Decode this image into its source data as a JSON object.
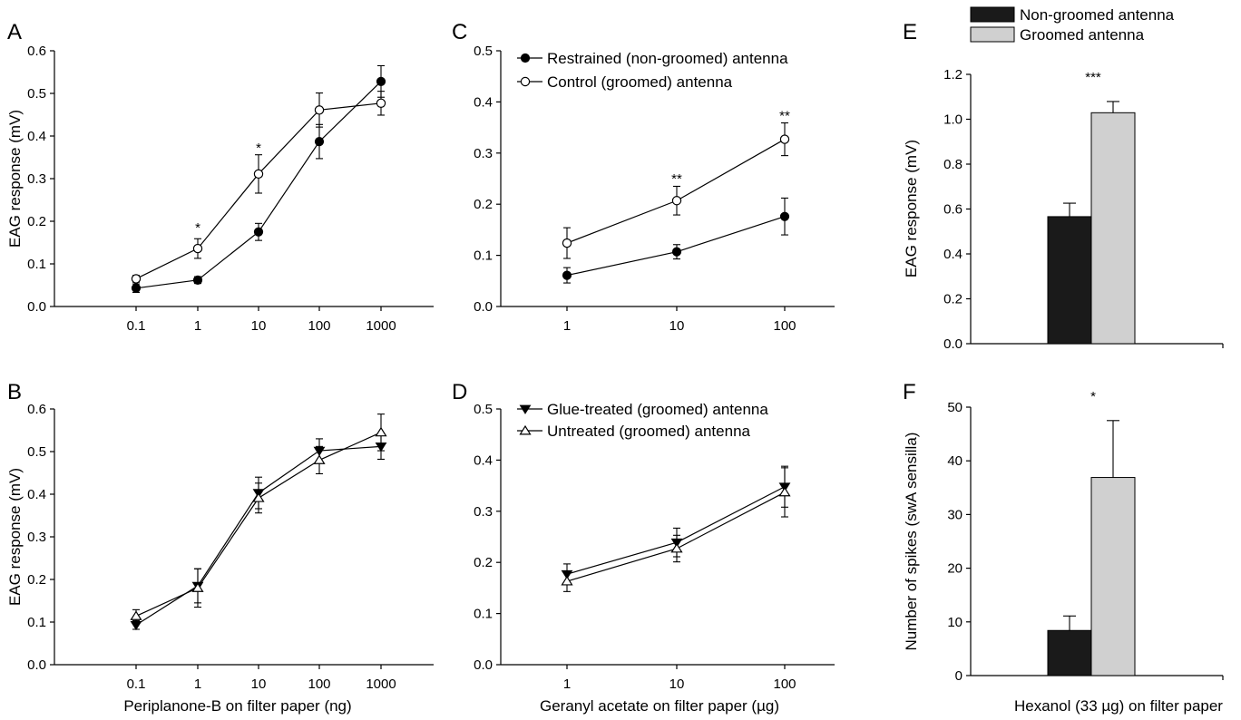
{
  "figure": {
    "x_titles": {
      "periplanone": "Periplanone-B on filter paper (ng)",
      "geranyl": "Geranyl acetate on filter paper (µg)",
      "hexanol": "Hexanol (33 µg) on filter paper"
    }
  },
  "chart_data": [
    {
      "panel": "A",
      "type": "line",
      "x_scale": "log",
      "categories": [
        "0.1",
        "1",
        "10",
        "100",
        "1000"
      ],
      "ylabel": "EAG response (mV)",
      "ylim": [
        0,
        0.6
      ],
      "yticks": [
        "0.0",
        "0.1",
        "0.2",
        "0.3",
        "0.4",
        "0.5",
        "0.6"
      ],
      "series": [
        {
          "marker": "filled-circle",
          "values": [
            0.043,
            0.062,
            0.175,
            0.387,
            0.528
          ],
          "errors": [
            0.01,
            0.008,
            0.02,
            0.04,
            0.037
          ]
        },
        {
          "marker": "open-circle",
          "values": [
            0.065,
            0.136,
            0.311,
            0.461,
            0.477
          ],
          "errors": [
            0.008,
            0.023,
            0.045,
            0.04,
            0.028
          ]
        }
      ],
      "annotations": [
        {
          "category": "1",
          "text": "*",
          "y": 0.185
        },
        {
          "category": "10",
          "text": "*",
          "y": 0.372
        }
      ]
    },
    {
      "panel": "B",
      "type": "line",
      "x_scale": "log",
      "categories": [
        "0.1",
        "1",
        "10",
        "100",
        "1000"
      ],
      "ylabel": "EAG response (mV)",
      "ylim": [
        0,
        0.6
      ],
      "yticks": [
        "0.0",
        "0.1",
        "0.2",
        "0.3",
        "0.4",
        "0.5",
        "0.6"
      ],
      "series": [
        {
          "marker": "filled-triangle-down",
          "values": [
            0.093,
            0.185,
            0.403,
            0.502,
            0.512
          ],
          "errors": [
            0.01,
            0.04,
            0.037,
            0.028,
            0.03
          ]
        },
        {
          "marker": "open-triangle-up",
          "values": [
            0.114,
            0.18,
            0.391,
            0.48,
            0.545
          ],
          "errors": [
            0.015,
            0.045,
            0.035,
            0.032,
            0.043
          ]
        }
      ],
      "legend": [
        "Glue-treated (groomed) antenna",
        "Untreated (groomed) antenna"
      ]
    },
    {
      "panel": "C",
      "type": "line",
      "x_scale": "log",
      "categories": [
        "1",
        "10",
        "100"
      ],
      "ylim": [
        0,
        0.5
      ],
      "yticks": [
        "0.0",
        "0.1",
        "0.2",
        "0.3",
        "0.4",
        "0.5"
      ],
      "series": [
        {
          "marker": "filled-circle",
          "values": [
            0.061,
            0.107,
            0.176
          ],
          "errors": [
            0.015,
            0.014,
            0.036
          ]
        },
        {
          "marker": "open-circle",
          "values": [
            0.124,
            0.207,
            0.327
          ],
          "errors": [
            0.03,
            0.028,
            0.032
          ]
        }
      ],
      "legend": [
        "Restrained (non-groomed) antenna",
        "Control (groomed) antenna"
      ],
      "annotations": [
        {
          "category": "10",
          "text": "**",
          "y": 0.25
        },
        {
          "category": "100",
          "text": "**",
          "y": 0.373
        }
      ]
    },
    {
      "panel": "D",
      "type": "line",
      "x_scale": "log",
      "categories": [
        "1",
        "10",
        "100"
      ],
      "ylim": [
        0,
        0.5
      ],
      "yticks": [
        "0.0",
        "0.1",
        "0.2",
        "0.3",
        "0.4",
        "0.5"
      ],
      "series": [
        {
          "marker": "filled-triangle-down",
          "values": [
            0.177,
            0.239,
            0.348
          ],
          "errors": [
            0.02,
            0.028,
            0.04
          ]
        },
        {
          "marker": "open-triangle-up",
          "values": [
            0.163,
            0.227,
            0.337
          ],
          "errors": [
            0.02,
            0.026,
            0.048
          ]
        }
      ]
    },
    {
      "panel": "E",
      "type": "bar",
      "categories": [
        "Non-groomed antenna",
        "Groomed antenna"
      ],
      "values": [
        0.566,
        1.029
      ],
      "errors": [
        0.06,
        0.05
      ],
      "colors": [
        "#1a1a1a",
        "#d0d0d0"
      ],
      "ylabel": "EAG response (mV)",
      "ylim": [
        0,
        1.2
      ],
      "yticks": [
        "0.0",
        "0.2",
        "0.4",
        "0.6",
        "0.8",
        "1.0",
        "1.2"
      ],
      "legend": [
        "Non-groomed antenna",
        "Groomed antenna"
      ],
      "annotation": "***"
    },
    {
      "panel": "F",
      "type": "bar",
      "categories": [
        "Non-groomed antenna",
        "Groomed antenna"
      ],
      "values": [
        8.4,
        36.9
      ],
      "errors": [
        2.7,
        10.6
      ],
      "colors": [
        "#1a1a1a",
        "#d0d0d0"
      ],
      "ylabel": "Number of spikes (swA sensilla)",
      "ylim": [
        0,
        50
      ],
      "yticks": [
        "0",
        "10",
        "20",
        "30",
        "40",
        "50"
      ],
      "annotation": "*"
    }
  ]
}
